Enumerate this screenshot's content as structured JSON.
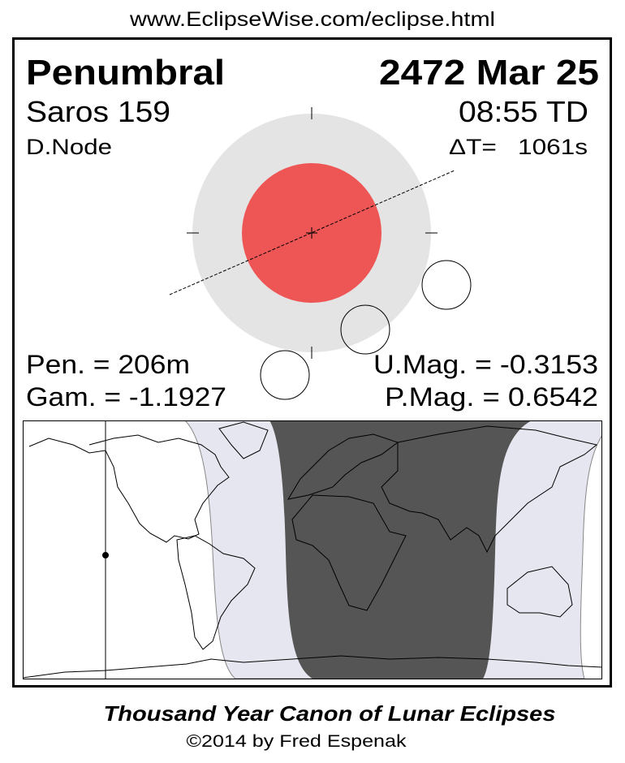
{
  "header": {
    "url": "www.EclipseWise.com/eclipse.html"
  },
  "eclipse": {
    "type": "Penumbral",
    "date": "2472 Mar 25",
    "saros": "Saros 159",
    "time": "08:55 TD",
    "node": "D.Node",
    "delta_t": "ΔT=   1061s",
    "pen_duration": "Pen. = 206m",
    "gamma": "Gam. = -1.1927",
    "umbral_mag": "U.Mag. = -0.3153",
    "penumbral_mag": "P.Mag. = 0.6542"
  },
  "colors": {
    "penumbra": "#E4E4E4",
    "umbra": "#EE5555",
    "map_penumbral_zone": "#E6E6F0",
    "map_visible_zone": "#555555"
  },
  "footer": {
    "title": "Thousand Year Canon of Lunar Eclipses",
    "copyright": "©2014 by Fred Espenak"
  }
}
